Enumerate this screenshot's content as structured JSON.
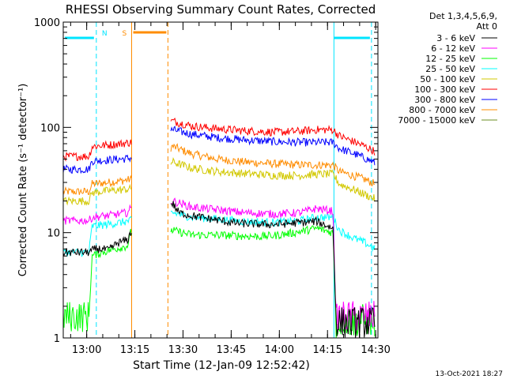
{
  "chart_data": {
    "type": "line",
    "title": "RHESSI Observing Summary Count Rates, Corrected",
    "xlabel": "Start Time (12-Jan-09 12:52:42)",
    "ylabel": "Corrected Count Rate (s⁻¹ detector⁻¹)",
    "yscale": "log",
    "ylim": [
      1,
      1000
    ],
    "xlim_minutes_after_start": [
      0,
      98
    ],
    "x_ticks": [
      {
        "label": "13:00",
        "t": 7.3
      },
      {
        "label": "13:15",
        "t": 22.3
      },
      {
        "label": "13:30",
        "t": 37.3
      },
      {
        "label": "13:45",
        "t": 52.3
      },
      {
        "label": "14:00",
        "t": 67.3
      },
      {
        "label": "14:15",
        "t": 82.3
      },
      {
        "label": "14:30",
        "t": 97.3
      }
    ],
    "y_ticks": [
      {
        "label": "1",
        "v": 1
      },
      {
        "label": "10",
        "v": 10
      },
      {
        "label": "100",
        "v": 100
      },
      {
        "label": "1000",
        "v": 1000
      }
    ],
    "legend_header": [
      "Det 1,3,4,5,6,9,",
      "Att 0"
    ],
    "legend_position": "right",
    "footer_date": "13-Oct-2021 18:27",
    "time_bars": [
      {
        "label": "N",
        "color": "#00e5ff",
        "t0": 0,
        "t1": 10.3
      },
      {
        "label": "",
        "color": "#00e5ff",
        "t0": 84.3,
        "t1": 96.0
      },
      {
        "label": "S",
        "color": "#ff8c00",
        "t0": 21.3,
        "t1": 32.6
      }
    ],
    "markers": [
      {
        "t": 10.3,
        "color": "#00e5ff",
        "style": "dashed"
      },
      {
        "t": 84.3,
        "color": "#00e5ff",
        "style": "solid"
      },
      {
        "t": 96.0,
        "color": "#00e5ff",
        "style": "dashed"
      },
      {
        "t": 21.3,
        "color": "#ff8c00",
        "style": "solid"
      },
      {
        "t": 32.6,
        "color": "#ff8c00",
        "style": "dashed"
      }
    ],
    "gaps": [
      [
        21.3,
        33.3
      ]
    ],
    "series": [
      {
        "name": "3 - 6 keV",
        "color": "#000000",
        "x": [
          0,
          8,
          10,
          12,
          14,
          17,
          20,
          21,
          34,
          36,
          40,
          44,
          48,
          52,
          56,
          62,
          66,
          70,
          74,
          79,
          84,
          85,
          85.5,
          87,
          90,
          94,
          97
        ],
        "y": [
          6.5,
          6.5,
          7,
          7,
          6.8,
          8,
          8.5,
          10,
          19,
          15.5,
          14.5,
          13.8,
          13.2,
          12.5,
          12.2,
          12.0,
          12.0,
          12.2,
          12.5,
          12.8,
          11,
          1.5,
          1.4,
          1.4,
          1.4,
          1.4,
          1.4
        ]
      },
      {
        "name": "6 - 12 keV",
        "color": "#ff00ff",
        "x": [
          0,
          8,
          9,
          14,
          17,
          20,
          21,
          34,
          40,
          48,
          56,
          66,
          74,
          79,
          84,
          85,
          85.5,
          88,
          92,
          97
        ],
        "y": [
          13,
          13,
          14,
          14.5,
          15,
          15.5,
          17,
          20,
          17.5,
          16.5,
          15.5,
          15,
          15.5,
          17,
          16,
          1.4,
          1.6,
          1.6,
          1.6,
          1.6
        ]
      },
      {
        "name": "12 - 25 keV",
        "color": "#00ff00",
        "x": [
          0,
          8,
          9,
          12,
          16,
          20,
          21,
          34,
          40,
          48,
          56,
          62,
          66,
          72,
          79,
          84,
          85,
          87,
          90,
          93,
          97
        ],
        "y": [
          1.6,
          1.6,
          6,
          6.5,
          7,
          7.5,
          10,
          10.5,
          9.5,
          9.5,
          9.3,
          9.2,
          9.4,
          10,
          11,
          10,
          1.3,
          1.5,
          1.4,
          1.5,
          1.4
        ]
      },
      {
        "name": "25 - 50 keV",
        "color": "#00ffff",
        "x": [
          0,
          8,
          9,
          14,
          18,
          21,
          34,
          40,
          48,
          56,
          66,
          74,
          79,
          84,
          86,
          90,
          94,
          97
        ],
        "y": [
          6.5,
          6.5,
          11.5,
          12,
          12.5,
          13,
          15.5,
          14,
          13.5,
          12.8,
          12.5,
          13,
          14,
          14,
          10.5,
          9,
          8,
          7
        ]
      },
      {
        "name": "50 - 100 keV",
        "color": "#d2c800",
        "x": [
          0,
          8,
          9,
          14,
          18,
          21,
          34,
          40,
          48,
          56,
          66,
          74,
          79,
          84,
          86,
          90,
          94,
          97
        ],
        "y": [
          20,
          20,
          24,
          25,
          25.5,
          26,
          47,
          41,
          38,
          36.5,
          35,
          35,
          36,
          36,
          29,
          26,
          23,
          21
        ]
      },
      {
        "name": "100 - 300 keV",
        "color": "#ff0000",
        "x": [
          0,
          8,
          9,
          14,
          18,
          21,
          34,
          40,
          48,
          56,
          66,
          74,
          79,
          84,
          86,
          90,
          94,
          97
        ],
        "y": [
          53,
          53,
          66,
          68,
          70,
          72,
          115,
          103,
          97,
          93,
          90,
          92,
          95,
          95,
          83,
          74,
          66,
          59
        ]
      },
      {
        "name": "300 - 800 keV",
        "color": "#0000ff",
        "x": [
          0,
          8,
          9,
          14,
          18,
          21,
          34,
          40,
          48,
          56,
          66,
          74,
          79,
          84,
          86,
          90,
          94,
          97
        ],
        "y": [
          40,
          40,
          48,
          49,
          50,
          51,
          95,
          86,
          80,
          76,
          73,
          72,
          72,
          72,
          63,
          57,
          51,
          46
        ]
      },
      {
        "name": "800 - 7000 keV",
        "color": "#ff8c00",
        "x": [
          0,
          8,
          9,
          14,
          18,
          21,
          34,
          40,
          48,
          56,
          66,
          74,
          79,
          84,
          86,
          90,
          94,
          97
        ],
        "y": [
          24.5,
          24.5,
          29,
          30,
          31,
          32,
          66,
          56,
          50,
          47,
          45,
          44,
          44,
          44,
          38,
          35,
          32,
          29
        ]
      },
      {
        "name": "7000 - 15000 keV",
        "color": "#6b8e23",
        "x": [],
        "y": []
      }
    ]
  }
}
